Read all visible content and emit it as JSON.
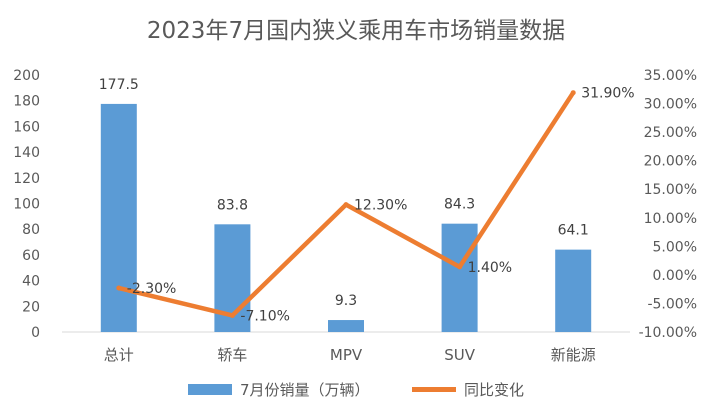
{
  "chart_data": {
    "type": "bar",
    "title": "2023年7月国内狭义乘用车市场销量数据",
    "categories": [
      "总计",
      "轿车",
      "MPV",
      "SUV",
      "新能源"
    ],
    "series": [
      {
        "name": "7月份销量（万辆）",
        "type": "bar",
        "axis": "left",
        "color": "#5B9BD5",
        "values": [
          177.5,
          83.8,
          9.3,
          84.3,
          64.1
        ],
        "labels": [
          "177.5",
          "83.8",
          "9.3",
          "84.3",
          "64.1"
        ]
      },
      {
        "name": "同比变化",
        "type": "line",
        "axis": "right",
        "color": "#ED7D31",
        "values": [
          -2.3,
          -7.1,
          12.3,
          1.4,
          31.9
        ],
        "labels": [
          "-2.30%",
          "-7.10%",
          "12.30%",
          "1.40%",
          "31.90%"
        ]
      }
    ],
    "y_left": {
      "min": 0,
      "max": 200,
      "step": 20,
      "tick_labels": [
        "0",
        "20",
        "40",
        "60",
        "80",
        "100",
        "120",
        "140",
        "160",
        "180",
        "200"
      ]
    },
    "y_right": {
      "min": -10,
      "max": 35,
      "step": 5,
      "tick_labels": [
        "-10.00%",
        "-5.00%",
        "0.00%",
        "5.00%",
        "10.00%",
        "15.00%",
        "20.00%",
        "25.00%",
        "30.00%",
        "35.00%"
      ]
    },
    "grid": false,
    "legend": "bottom"
  }
}
